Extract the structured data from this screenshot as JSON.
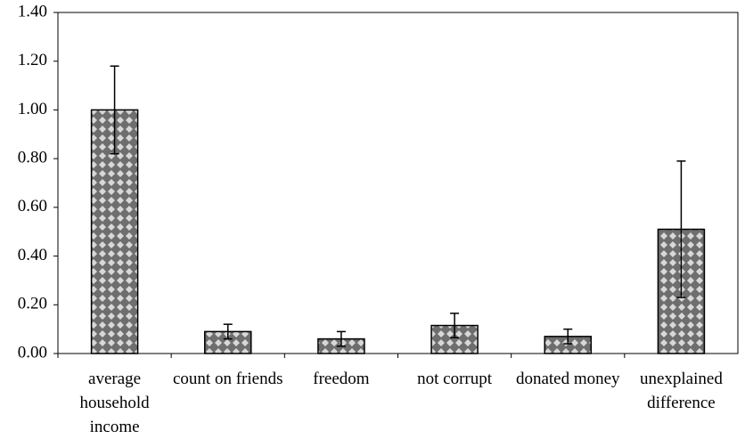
{
  "chart_data": {
    "type": "bar",
    "categories": [
      "average household income",
      "count on friends",
      "freedom",
      "not corrupt",
      "donated money",
      "unexplained difference"
    ],
    "values": [
      1.0,
      0.09,
      0.06,
      0.115,
      0.07,
      0.51
    ],
    "errors": [
      0.18,
      0.03,
      0.03,
      0.05,
      0.03,
      0.28
    ],
    "ylim": [
      0,
      1.4
    ],
    "yticks": [
      {
        "value": 0,
        "label": "0.00"
      },
      {
        "value": 0.2,
        "label": "0.20"
      },
      {
        "value": 0.4,
        "label": "0.40"
      },
      {
        "value": 0.6,
        "label": "0.60"
      },
      {
        "value": 0.8,
        "label": "0.80"
      },
      {
        "value": 1.0,
        "label": "1.00"
      },
      {
        "value": 1.2,
        "label": "1.20"
      },
      {
        "value": 1.4,
        "label": "1.40"
      }
    ],
    "grid": false
  }
}
